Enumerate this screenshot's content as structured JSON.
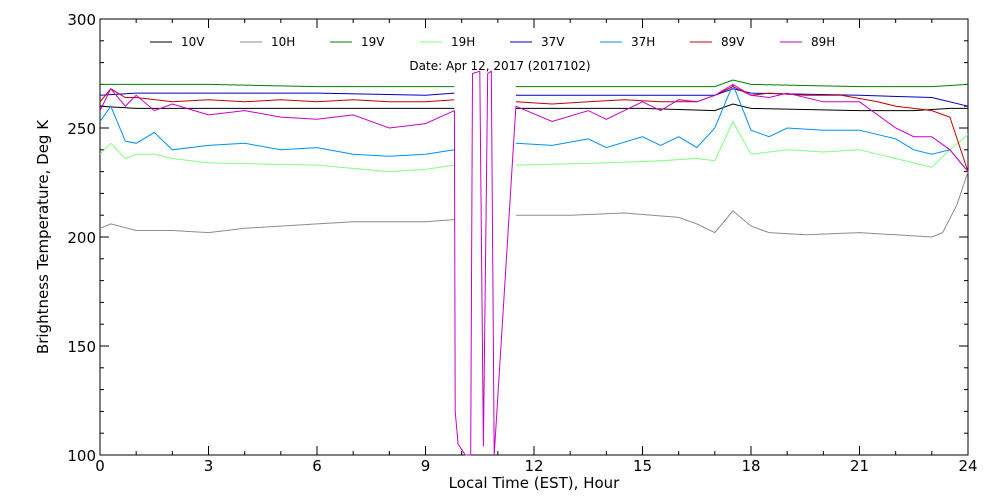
{
  "chart_data": {
    "type": "line",
    "subtitle": "Date: Apr 12, 2017 (2017102)",
    "xlabel": "Local Time (EST), Hour",
    "ylabel": "Brightness Temperature, Deg K",
    "xlim": [
      0,
      24
    ],
    "ylim": [
      100,
      300
    ],
    "x_ticks": [
      0,
      3,
      6,
      9,
      12,
      15,
      18,
      21,
      24
    ],
    "y_ticks": [
      100,
      150,
      200,
      250,
      300
    ],
    "grid": false,
    "legend_position": "top",
    "series": [
      {
        "name": "10V",
        "color": "#000000",
        "points": [
          [
            0,
            260
          ],
          [
            1,
            259
          ],
          [
            3,
            259
          ],
          [
            6,
            259
          ],
          [
            8,
            259
          ],
          [
            9.8,
            259
          ],
          [
            null,
            null
          ],
          [
            11.5,
            259
          ],
          [
            15,
            259
          ],
          [
            17,
            258
          ],
          [
            17.5,
            261
          ],
          [
            18,
            259
          ],
          [
            21,
            258
          ],
          [
            22.5,
            258
          ],
          [
            23.5,
            259
          ],
          [
            24,
            259
          ]
        ]
      },
      {
        "name": "10H",
        "color": "#8c8c8c",
        "points": [
          [
            0,
            204
          ],
          [
            0.3,
            206
          ],
          [
            1,
            203
          ],
          [
            2,
            203
          ],
          [
            3,
            202
          ],
          [
            4,
            204
          ],
          [
            5,
            205
          ],
          [
            6,
            206
          ],
          [
            7,
            207
          ],
          [
            8,
            207
          ],
          [
            9,
            207
          ],
          [
            9.8,
            208
          ],
          [
            null,
            null
          ],
          [
            11.5,
            210
          ],
          [
            13,
            210
          ],
          [
            14.5,
            211
          ],
          [
            16,
            209
          ],
          [
            16.5,
            206
          ],
          [
            17,
            202
          ],
          [
            17.5,
            212
          ],
          [
            18,
            205
          ],
          [
            18.5,
            202
          ],
          [
            19.5,
            201
          ],
          [
            21,
            202
          ],
          [
            22,
            201
          ],
          [
            23,
            200
          ],
          [
            23.3,
            202
          ],
          [
            23.7,
            215
          ],
          [
            24,
            230
          ]
        ]
      },
      {
        "name": "19V",
        "color": "#008000",
        "points": [
          [
            0,
            270
          ],
          [
            3,
            270
          ],
          [
            6,
            269
          ],
          [
            9,
            269
          ],
          [
            9.8,
            269
          ],
          [
            null,
            null
          ],
          [
            11.5,
            269
          ],
          [
            15,
            269
          ],
          [
            17,
            269
          ],
          [
            17.5,
            272
          ],
          [
            18,
            270
          ],
          [
            21,
            269
          ],
          [
            23,
            269
          ],
          [
            24,
            270
          ]
        ]
      },
      {
        "name": "19H",
        "color": "#80ff80",
        "points": [
          [
            0,
            238
          ],
          [
            0.3,
            243
          ],
          [
            0.7,
            236
          ],
          [
            1,
            238
          ],
          [
            1.5,
            238
          ],
          [
            2,
            236
          ],
          [
            3,
            234
          ],
          [
            6,
            233
          ],
          [
            8,
            230
          ],
          [
            9,
            231
          ],
          [
            9.8,
            233
          ],
          [
            null,
            null
          ],
          [
            11.5,
            233
          ],
          [
            14,
            234
          ],
          [
            15.5,
            235
          ],
          [
            16.5,
            236
          ],
          [
            17,
            235
          ],
          [
            17.5,
            253
          ],
          [
            18,
            238
          ],
          [
            19,
            240
          ],
          [
            20,
            239
          ],
          [
            21,
            240
          ],
          [
            22,
            236
          ],
          [
            23,
            232
          ],
          [
            23.5,
            240
          ],
          [
            24,
            247
          ]
        ]
      },
      {
        "name": "37V",
        "color": "#0000c8",
        "points": [
          [
            0,
            265
          ],
          [
            1,
            266
          ],
          [
            3,
            266
          ],
          [
            6,
            266
          ],
          [
            9,
            265
          ],
          [
            9.8,
            266
          ],
          [
            null,
            null
          ],
          [
            11.5,
            265
          ],
          [
            15,
            265
          ],
          [
            17,
            265
          ],
          [
            17.5,
            268
          ],
          [
            18,
            266
          ],
          [
            21,
            265
          ],
          [
            23,
            264
          ],
          [
            24,
            260
          ]
        ]
      },
      {
        "name": "37H",
        "color": "#0090ff",
        "points": [
          [
            0,
            253
          ],
          [
            0.3,
            260
          ],
          [
            0.7,
            244
          ],
          [
            1,
            243
          ],
          [
            1.5,
            248
          ],
          [
            2,
            240
          ],
          [
            3,
            242
          ],
          [
            4,
            243
          ],
          [
            5,
            240
          ],
          [
            6,
            241
          ],
          [
            7,
            238
          ],
          [
            8,
            237
          ],
          [
            9,
            238
          ],
          [
            9.8,
            240
          ],
          [
            null,
            null
          ],
          [
            11.5,
            243
          ],
          [
            12.5,
            242
          ],
          [
            13.5,
            245
          ],
          [
            14,
            241
          ],
          [
            15,
            246
          ],
          [
            15.5,
            242
          ],
          [
            16,
            246
          ],
          [
            16.5,
            241
          ],
          [
            17,
            250
          ],
          [
            17.5,
            270
          ],
          [
            18,
            249
          ],
          [
            18.5,
            246
          ],
          [
            19,
            250
          ],
          [
            20,
            249
          ],
          [
            21,
            249
          ],
          [
            22,
            245
          ],
          [
            22.5,
            240
          ],
          [
            23,
            238
          ],
          [
            23.5,
            240
          ],
          [
            24,
            230
          ]
        ]
      },
      {
        "name": "89V",
        "color": "#c80000",
        "points": [
          [
            0,
            262
          ],
          [
            0.3,
            268
          ],
          [
            0.7,
            264
          ],
          [
            1,
            264
          ],
          [
            2,
            262
          ],
          [
            3,
            263
          ],
          [
            4,
            262
          ],
          [
            5,
            263
          ],
          [
            6,
            262
          ],
          [
            7,
            263
          ],
          [
            8,
            262
          ],
          [
            9,
            262
          ],
          [
            9.8,
            263
          ],
          [
            null,
            null
          ],
          [
            11.5,
            262
          ],
          [
            12.5,
            261
          ],
          [
            13.5,
            262
          ],
          [
            14.5,
            263
          ],
          [
            15.5,
            262
          ],
          [
            16.5,
            262
          ],
          [
            17,
            265
          ],
          [
            17.5,
            269
          ],
          [
            18,
            265
          ],
          [
            18.5,
            266
          ],
          [
            19.5,
            265
          ],
          [
            20.5,
            265
          ],
          [
            21.5,
            262
          ],
          [
            22,
            260
          ],
          [
            22.5,
            259
          ],
          [
            23,
            258
          ],
          [
            23.5,
            255
          ],
          [
            24,
            230
          ]
        ]
      },
      {
        "name": "89H",
        "color": "#c800c8",
        "points": [
          [
            0,
            258
          ],
          [
            0.3,
            268
          ],
          [
            0.7,
            260
          ],
          [
            1,
            265
          ],
          [
            1.5,
            258
          ],
          [
            2,
            261
          ],
          [
            3,
            256
          ],
          [
            4,
            258
          ],
          [
            5,
            255
          ],
          [
            6,
            254
          ],
          [
            7,
            256
          ],
          [
            8,
            250
          ],
          [
            9,
            252
          ],
          [
            9.8,
            258
          ],
          [
            9.82,
            120
          ],
          [
            9.9,
            105
          ],
          [
            10.1,
            100
          ],
          [
            10.25,
            100
          ],
          [
            10.3,
            275
          ],
          [
            10.5,
            276
          ],
          [
            10.6,
            104
          ],
          [
            10.72,
            275
          ],
          [
            10.82,
            276
          ],
          [
            10.9,
            100
          ],
          [
            11.5,
            260
          ],
          [
            12.5,
            253
          ],
          [
            13.5,
            258
          ],
          [
            14,
            254
          ],
          [
            15,
            262
          ],
          [
            15.5,
            258
          ],
          [
            16,
            263
          ],
          [
            16.5,
            262
          ],
          [
            17,
            265
          ],
          [
            17.5,
            270
          ],
          [
            18,
            265
          ],
          [
            18.5,
            264
          ],
          [
            19,
            266
          ],
          [
            20,
            262
          ],
          [
            21,
            262
          ],
          [
            21.5,
            256
          ],
          [
            22,
            250
          ],
          [
            22.5,
            246
          ],
          [
            23,
            246
          ],
          [
            23.5,
            240
          ],
          [
            24,
            230
          ]
        ]
      }
    ]
  }
}
